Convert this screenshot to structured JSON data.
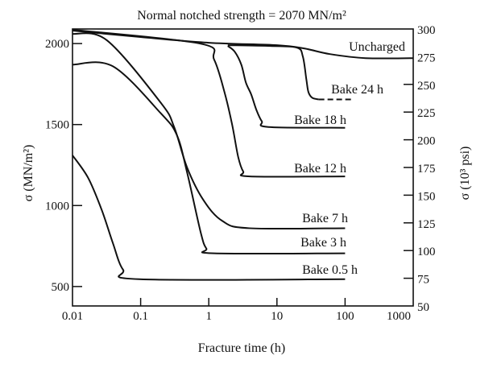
{
  "chart_data": {
    "type": "line",
    "title": "Normal notched strength = 2070 MN/m²",
    "xlabel": "Fracture time (h)",
    "ylabel": "σ (MN/m²)",
    "ylabel_right": "σ (10³ psi)",
    "xscale": "log",
    "xlim": [
      0.01,
      1000
    ],
    "ylim": [
      380,
      2090
    ],
    "ylim_right": [
      50,
      300
    ],
    "grid": false,
    "x_ticks": [
      "0.01",
      "0.1",
      "1",
      "10",
      "100",
      "1000"
    ],
    "x_tick_values": [
      0.01,
      0.1,
      1,
      10,
      100,
      1000
    ],
    "y_ticks": [
      "500",
      "1000",
      "1500",
      "2000"
    ],
    "y_tick_values": [
      500,
      1000,
      1500,
      2000
    ],
    "y_right_ticks": [
      "50",
      "75",
      "100",
      "125",
      "150",
      "175",
      "200",
      "225",
      "250",
      "275",
      "300"
    ],
    "y_right_tick_values": [
      50,
      75,
      100,
      125,
      150,
      175,
      200,
      225,
      250,
      275,
      300
    ],
    "series": [
      {
        "name": "Uncharged",
        "x": [
          0.01,
          0.1,
          1,
          10,
          25,
          60,
          200,
          1000
        ],
        "y": [
          2080,
          2040,
          2005,
          1990,
          1970,
          1935,
          1910,
          1910
        ]
      },
      {
        "name": "Bake 24 h",
        "x": [
          1.9,
          8,
          19.6,
          24,
          27,
          29,
          33,
          41
        ],
        "y": [
          1990,
          1985,
          1975,
          1920,
          1780,
          1700,
          1665,
          1655
        ],
        "dashed_extension": {
          "x": [
            41,
            130
          ],
          "y": [
            1655,
            1655
          ]
        }
      },
      {
        "name": "Bake 18 h",
        "x": [
          1.9,
          2.4,
          3,
          3.5,
          4.2,
          5,
          6,
          7.5,
          100
        ],
        "y": [
          1985,
          1950,
          1870,
          1760,
          1685,
          1590,
          1520,
          1485,
          1480
        ]
      },
      {
        "name": "Bake 12 h",
        "x": [
          0.01,
          0.75,
          1.2,
          1.7,
          2.2,
          2.7,
          3.2,
          4,
          100
        ],
        "y": [
          2085,
          2000,
          1900,
          1700,
          1500,
          1300,
          1210,
          1180,
          1180
        ]
      },
      {
        "name": "Bake 7 h",
        "x": [
          0.01,
          0.032,
          0.197,
          0.31,
          0.48,
          0.83,
          1.58,
          3.9,
          100
        ],
        "y": [
          2060,
          2020,
          1635,
          1485,
          1235,
          1035,
          905,
          860,
          860
        ]
      },
      {
        "name": "Bake 3 h",
        "x": [
          0.01,
          0.039,
          0.197,
          0.34,
          0.48,
          0.76,
          0.92,
          1.2,
          100
        ],
        "y": [
          1870,
          1860,
          1570,
          1435,
          1205,
          835,
          735,
          705,
          705
        ]
      },
      {
        "name": "Bake 0.5 h",
        "x": [
          0.01,
          0.017,
          0.027,
          0.039,
          0.055,
          0.095,
          100
        ],
        "y": [
          1310,
          1170,
          970,
          770,
          605,
          545,
          545
        ]
      }
    ]
  }
}
